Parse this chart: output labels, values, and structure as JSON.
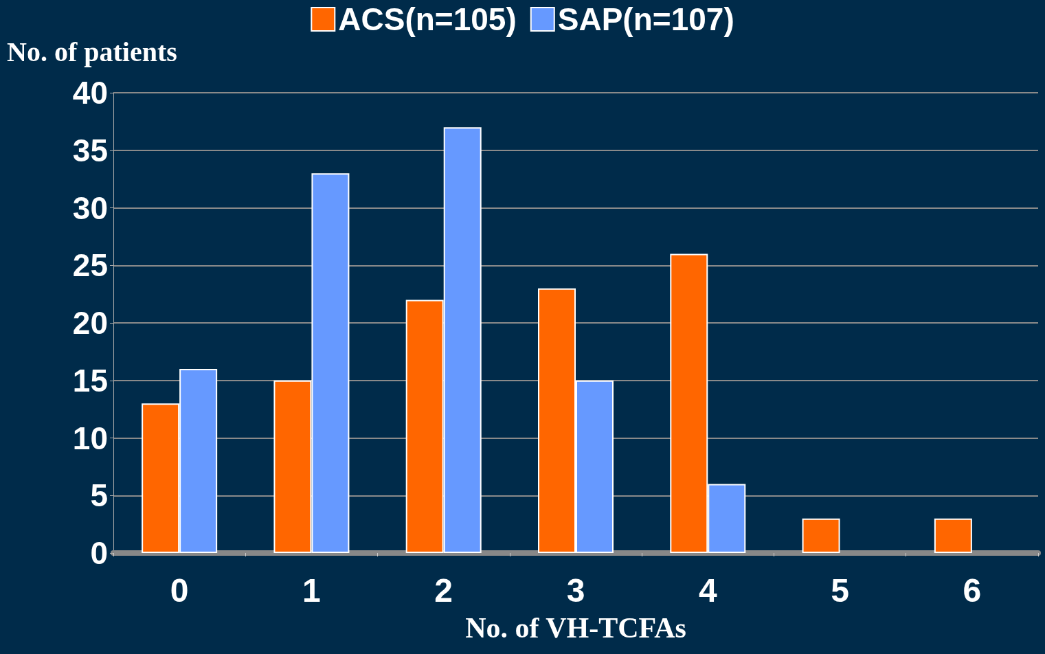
{
  "chart_data": {
    "type": "bar",
    "xlabel": "No. of VH-TCFAs",
    "ylabel": "No. of patients",
    "categories": [
      "0",
      "1",
      "2",
      "3",
      "4",
      "5",
      "6"
    ],
    "series": [
      {
        "name": "ACS(n=105)",
        "color": "#ff6600",
        "values": [
          13,
          15,
          22,
          23,
          26,
          3,
          3
        ]
      },
      {
        "name": "SAP(n=107)",
        "color": "#6699ff",
        "values": [
          16,
          33,
          37,
          15,
          6,
          null,
          null
        ]
      }
    ],
    "ylim": [
      0,
      40
    ],
    "yticks": [
      0,
      5,
      10,
      15,
      20,
      25,
      30,
      35,
      40
    ],
    "grid": "y",
    "legend": "top"
  }
}
